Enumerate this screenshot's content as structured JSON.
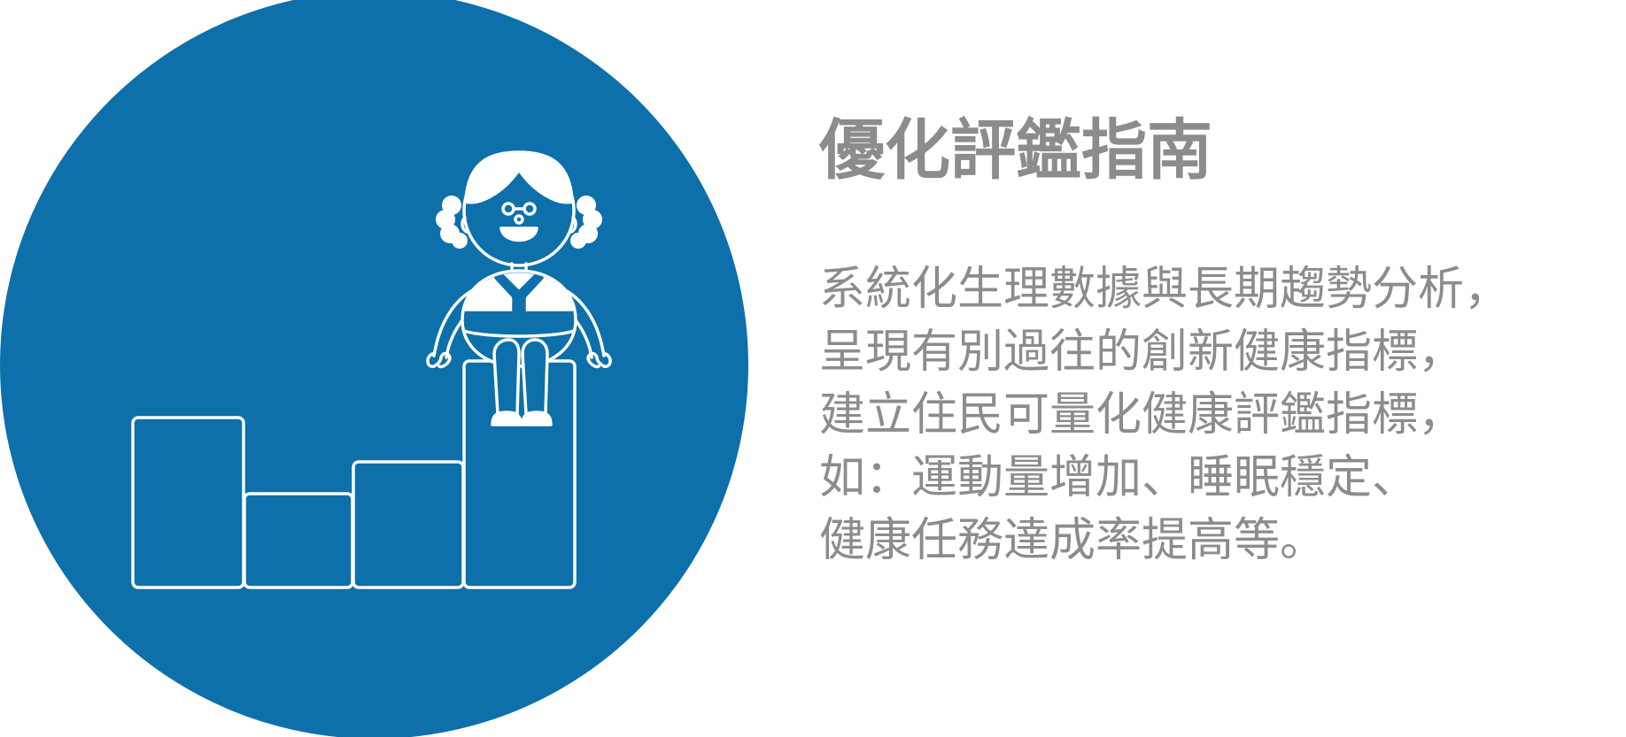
{
  "heading": {
    "title": "優化評鑑指南"
  },
  "description": {
    "lines": [
      "系統化生理數據與長期趨勢分析，",
      "呈現有別過往的創新健康指標，",
      "建立住民可量化健康評鑑指標，",
      "如：運動量增加、睡眠穩定、",
      "健康任務達成率提高等。"
    ]
  },
  "illustration": {
    "subject": "person-sitting-on-rising-bars",
    "icon": "person-on-bar-chart-icon"
  },
  "colors": {
    "circle_fill": "#0d70aa",
    "line_art": "#ffffff",
    "text": "#8c8c8c",
    "background": "#ffffff"
  }
}
